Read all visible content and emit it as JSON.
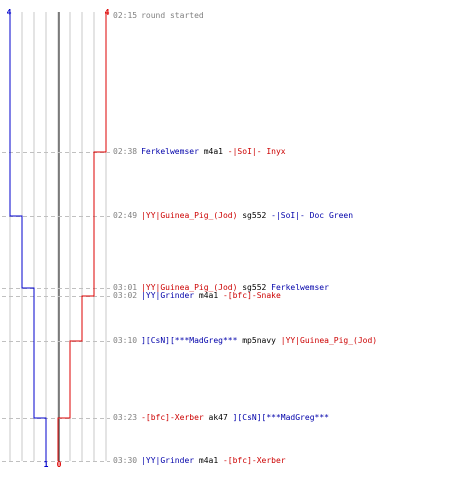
{
  "colors": {
    "team_blue": "#0000cc",
    "team_red": "#dd0000",
    "grid": "#c8c8c8",
    "dash": "#c0c0c0"
  },
  "score_start": {
    "blue": "4",
    "red": "4"
  },
  "score_end": {
    "blue": "1",
    "red": "0"
  },
  "timeline": {
    "blue_steps": [
      4,
      3,
      2,
      1
    ],
    "red_steps": [
      4,
      3,
      2,
      1,
      0
    ]
  },
  "events": [
    {
      "time": "02:15",
      "text": "round started",
      "type": "sys"
    },
    {
      "time": "02:38",
      "killer": "Ferkelwemser",
      "killer_team": "blue",
      "weapon": "m4a1",
      "victim": "-|SoI|- Inyx",
      "victim_team": "red"
    },
    {
      "time": "02:49",
      "killer": "|YY|Guinea_Pig_(Jod)",
      "killer_team": "red",
      "weapon": "sg552",
      "victim": "-|SoI|- Doc Green",
      "victim_team": "blue"
    },
    {
      "time": "03:01",
      "killer": "|YY|Guinea_Pig_(Jod)",
      "killer_team": "red",
      "weapon": "sg552",
      "victim": "Ferkelwemser",
      "victim_team": "blue"
    },
    {
      "time": "03:02",
      "killer": "|YY|Grinder",
      "killer_team": "blue",
      "weapon": "m4a1",
      "victim": "-[bfc]-Snake",
      "victim_team": "red"
    },
    {
      "time": "03:10",
      "killer": "][CsN][***MadGreg***",
      "killer_team": "blue",
      "weapon": "mp5navy",
      "victim": "|YY|Guinea_Pig_(Jod)",
      "victim_team": "red"
    },
    {
      "time": "03:23",
      "killer": "-[bfc]-Xerber",
      "killer_team": "red",
      "weapon": "ak47",
      "victim": "][CsN][***MadGreg***",
      "victim_team": "blue"
    },
    {
      "time": "03:30",
      "killer": "|YY|Grinder",
      "killer_team": "blue",
      "weapon": "m4a1",
      "victim": "-[bfc]-Xerber",
      "victim_team": "red"
    }
  ]
}
